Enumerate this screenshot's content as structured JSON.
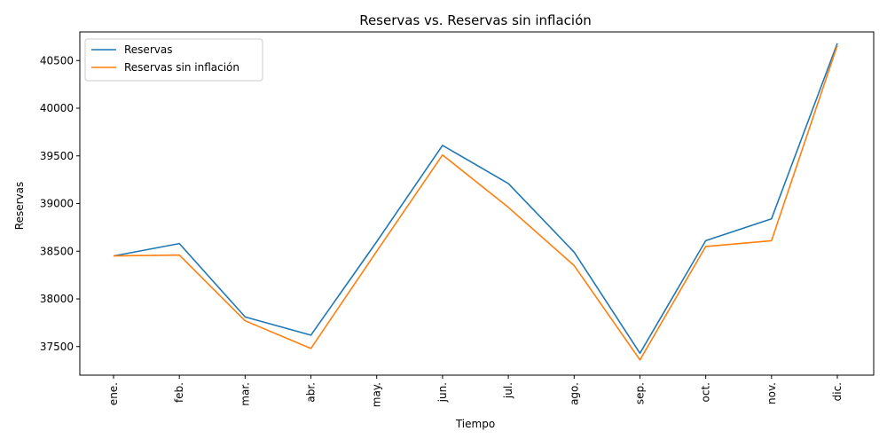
{
  "chart_data": {
    "type": "line",
    "title": "Reservas vs. Reservas sin inflación",
    "xlabel": "Tiempo",
    "ylabel": "Reservas",
    "categories": [
      "ene.",
      "feb.",
      "mar.",
      "abr.",
      "may.",
      "jun.",
      "jul.",
      "ago.",
      "sep.",
      "oct.",
      "nov.",
      "dic."
    ],
    "y_ticks": [
      37500,
      38000,
      38500,
      39000,
      39500,
      40000,
      40500
    ],
    "ylim": [
      37200,
      40800
    ],
    "grid": false,
    "legend_position": "top-left",
    "series": [
      {
        "name": "Reservas",
        "color": "#1f77b4",
        "values": [
          38450,
          38580,
          37810,
          37620,
          38600,
          39610,
          39210,
          38490,
          37430,
          38610,
          38840,
          40680
        ]
      },
      {
        "name": "Reservas sin inflación",
        "color": "#ff7f0e",
        "values": [
          38450,
          38460,
          37770,
          37480,
          38500,
          39510,
          38960,
          38350,
          37360,
          38550,
          38610,
          40660
        ]
      }
    ]
  }
}
